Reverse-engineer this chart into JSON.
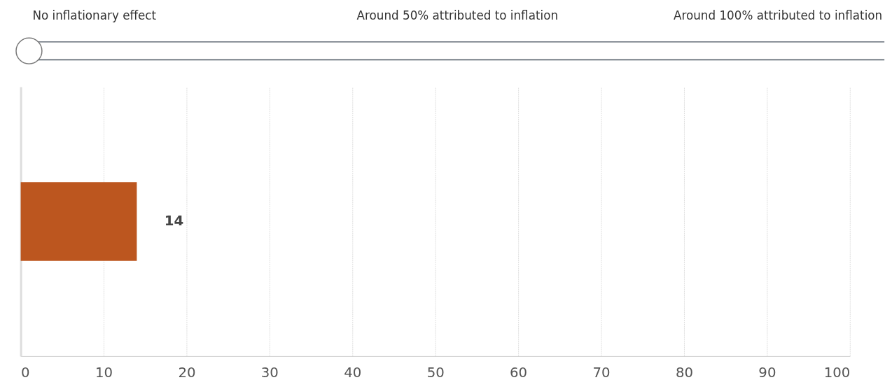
{
  "chart_data": {
    "type": "bar",
    "orientation": "horizontal",
    "categories": [
      null
    ],
    "values": [
      14
    ],
    "color": "#bc561f",
    "data_labels": true,
    "xlim": [
      0,
      100
    ],
    "xticks": [
      0,
      10,
      20,
      30,
      40,
      50,
      60,
      70,
      80,
      90,
      100
    ],
    "grid": "x",
    "tick_labels": "x",
    "annotations": [
      "No inflationary effect",
      "Around 50% attributed to inflation",
      "Around 100% attributed to inflation"
    ]
  }
}
